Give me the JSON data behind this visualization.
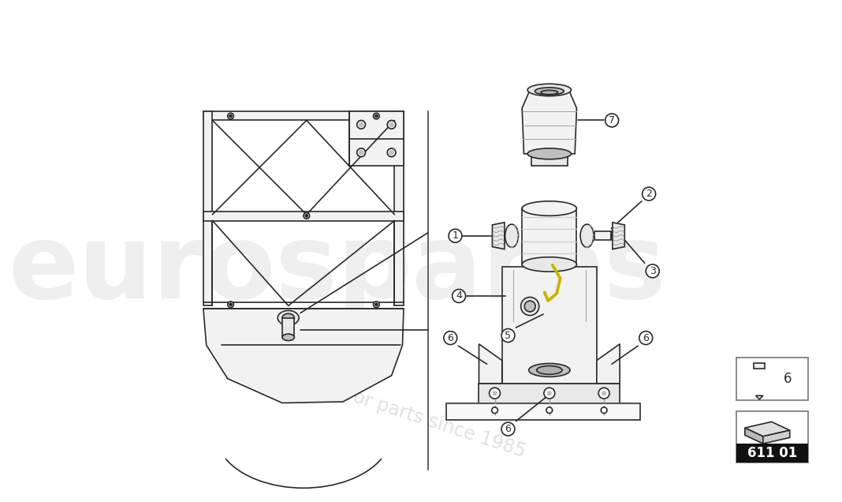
{
  "bg_color": "#ffffff",
  "line_color": "#2a2a2a",
  "gray_fill": "#e8e8e8",
  "dark_gray": "#c0c0c0",
  "light_gray": "#f2f2f2",
  "watermark1": "eurospares",
  "watermark2": "a passion for parts since 1985",
  "part_number": "611 01",
  "lw": 1.2,
  "part7_label": "7",
  "part1_label": "1",
  "part2_label": "2",
  "part3_label": "3",
  "part4_label": "4",
  "part5_label": "5",
  "part6_label": "6",
  "screw_legend_label": "6"
}
